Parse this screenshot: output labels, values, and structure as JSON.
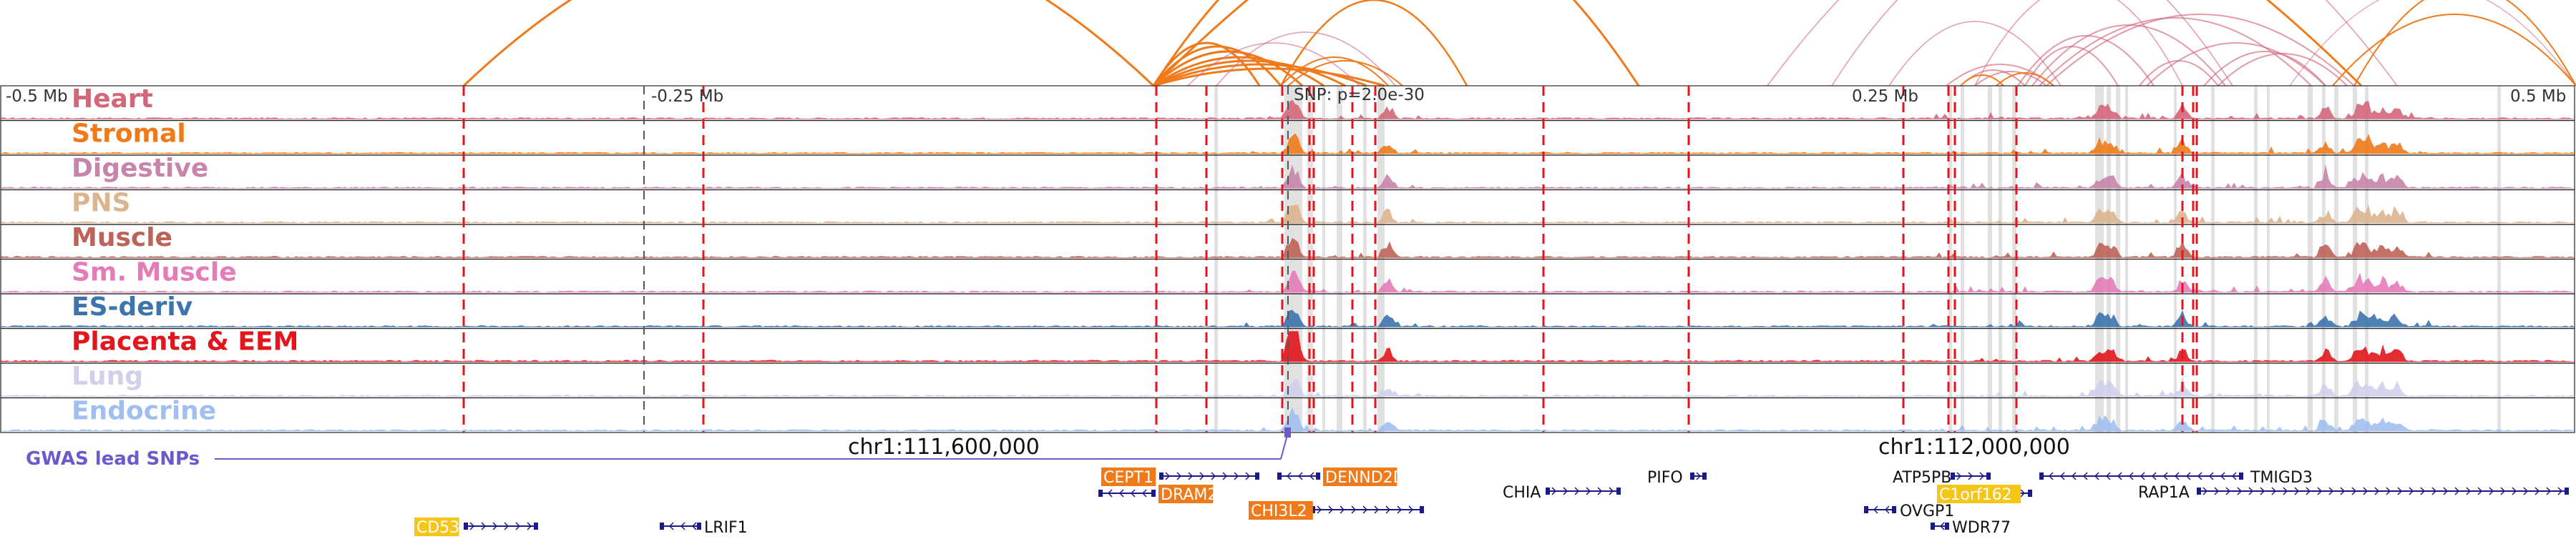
{
  "scale_labels": {
    "left": "-0.5 Mb",
    "quarter_left": "-0.25 Mb",
    "snp": "SNP: p=2.0e-30",
    "quarter_right": "0.25 Mb",
    "right": "0.5 Mb"
  },
  "tracks": [
    {
      "label": "Heart",
      "color": "#d4667a"
    },
    {
      "label": "Stromal",
      "color": "#f07a1a"
    },
    {
      "label": "Digestive",
      "color": "#c785ab"
    },
    {
      "label": "PNS",
      "color": "#dcb48e"
    },
    {
      "label": "Muscle",
      "color": "#be6258"
    },
    {
      "label": "Sm. Muscle",
      "color": "#e57cb8"
    },
    {
      "label": "ES-deriv",
      "color": "#3d74ad"
    },
    {
      "label": "Placenta & EEM",
      "color": "#e2161c"
    },
    {
      "label": "Lung",
      "color": "#d0d0ea"
    },
    {
      "label": "Endocrine",
      "color": "#a0bff0"
    }
  ],
  "coordinates": {
    "left": "chr1:111,600,000",
    "right": "chr1:112,000,000"
  },
  "gwas_label": "GWAS lead SNPs",
  "genes": [
    {
      "name": "CEPT1",
      "highlight": "orange"
    },
    {
      "name": "DENND2D",
      "highlight": "orange"
    },
    {
      "name": "DRAM2",
      "highlight": "orange"
    },
    {
      "name": "CHI3L2",
      "highlight": "orange"
    },
    {
      "name": "CHIA",
      "highlight": "none"
    },
    {
      "name": "PIFO",
      "highlight": "none"
    },
    {
      "name": "ATP5PB",
      "highlight": "none"
    },
    {
      "name": "C1orf162",
      "highlight": "yellow"
    },
    {
      "name": "TMIGD3",
      "highlight": "none"
    },
    {
      "name": "RAP1A",
      "highlight": "none"
    },
    {
      "name": "OVGP1",
      "highlight": "none"
    },
    {
      "name": "WDR77",
      "highlight": "none"
    },
    {
      "name": "CD53",
      "highlight": "yellow"
    },
    {
      "name": "LRIF1",
      "highlight": "none"
    }
  ],
  "colors": {
    "loop_strong": "#f07a1a",
    "loop_weak": "#d4667a",
    "enhancer_line": "#e2161c",
    "gwas": "#6a5acd",
    "gene_body": "#1a1a8c",
    "gene_orange": "#f07a1a",
    "gene_yellow": "#f5c518"
  }
}
